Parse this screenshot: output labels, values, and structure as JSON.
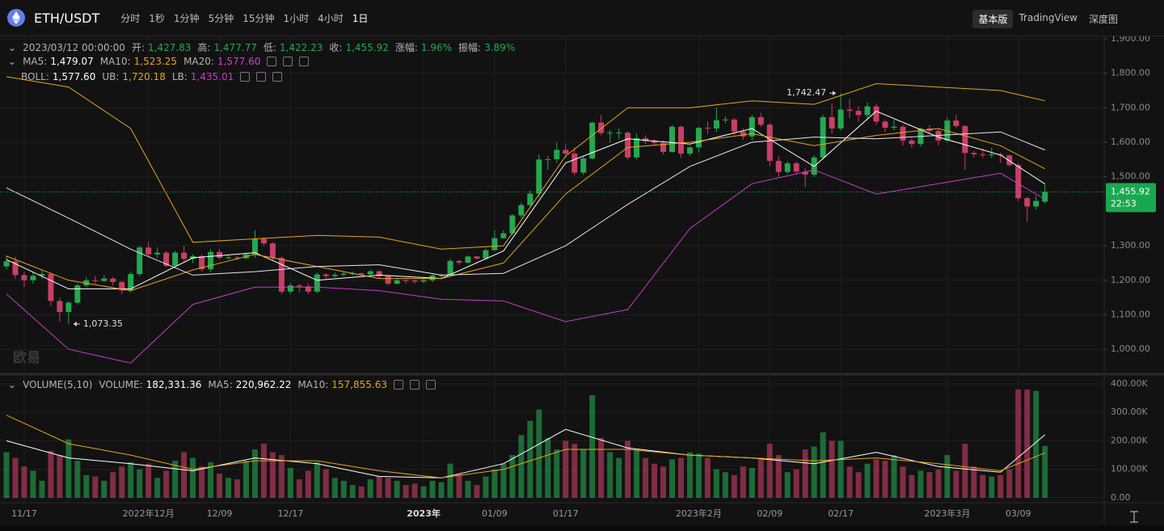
{
  "toolbar": {
    "symbol": "ETH/USDT",
    "intervals": [
      "分时",
      "1秒",
      "1分钟",
      "5分钟",
      "15分钟",
      "1小时",
      "4小时",
      "1日"
    ],
    "views": [
      "基本版",
      "TradingView",
      "深度图"
    ]
  },
  "watermark": "欧易",
  "chart_data": {
    "type": "candlestick",
    "title": "ETH/USDT",
    "header": {
      "date": "2023/03/12 00:00:00",
      "fields": [
        {
          "name": "开:",
          "label": "1,427.83"
        },
        {
          "name": "高:",
          "label": "1,477.77"
        },
        {
          "name": "低:",
          "label": "1,422.23"
        },
        {
          "name": "收:",
          "label": "1,455.92"
        },
        {
          "name": "涨幅:",
          "label": "1.96%"
        },
        {
          "name": "振幅:",
          "label": "3.89%"
        }
      ]
    },
    "color_up": "#25a750",
    "color_down": "#c93f66",
    "x": [
      "11/15",
      "11/16",
      "11/17",
      "11/18",
      "11/19",
      "11/20",
      "11/21",
      "11/22",
      "11/23",
      "11/24",
      "11/25",
      "11/26",
      "11/27",
      "11/28",
      "11/29",
      "11/30",
      "12/01",
      "12/02",
      "12/03",
      "12/04",
      "12/05",
      "12/06",
      "12/07",
      "12/08",
      "12/09",
      "12/10",
      "12/11",
      "12/12",
      "12/13",
      "12/14",
      "12/15",
      "12/16",
      "12/17",
      "12/18",
      "12/19",
      "12/20",
      "12/21",
      "12/22",
      "12/23",
      "12/24",
      "12/25",
      "12/26",
      "12/27",
      "12/28",
      "12/29",
      "12/30",
      "12/31",
      "01/01",
      "01/02",
      "01/03",
      "01/04",
      "01/05",
      "01/06",
      "01/07",
      "01/08",
      "01/09",
      "01/10",
      "01/11",
      "01/12",
      "01/13",
      "01/14",
      "01/15",
      "01/16",
      "01/17",
      "01/18",
      "01/19",
      "01/20",
      "01/21",
      "01/22",
      "01/23",
      "01/24",
      "01/25",
      "01/26",
      "01/27",
      "01/28",
      "01/29",
      "01/30",
      "01/31",
      "02/01",
      "02/02",
      "02/03",
      "02/04",
      "02/05",
      "02/06",
      "02/07",
      "02/08",
      "02/09",
      "02/10",
      "02/11",
      "02/12",
      "02/13",
      "02/14",
      "02/15",
      "02/16",
      "02/17",
      "02/18",
      "02/19",
      "02/20",
      "02/21",
      "02/22",
      "02/23",
      "02/24",
      "02/25",
      "02/26",
      "02/27",
      "02/28",
      "03/01",
      "03/02",
      "03/03",
      "03/04",
      "03/05",
      "03/06",
      "03/07",
      "03/08",
      "03/09",
      "03/10",
      "03/11",
      "03/12"
    ],
    "open": [
      1240,
      1255,
      1215,
      1200,
      1213,
      1218,
      1140,
      1108,
      1135,
      1185,
      1200,
      1198,
      1205,
      1195,
      1170,
      1218,
      1295,
      1275,
      1280,
      1242,
      1280,
      1262,
      1270,
      1232,
      1282,
      1265,
      1266,
      1264,
      1275,
      1320,
      1307,
      1265,
      1167,
      1185,
      1182,
      1167,
      1217,
      1212,
      1216,
      1219,
      1220,
      1217,
      1226,
      1212,
      1190,
      1200,
      1199,
      1196,
      1200,
      1214,
      1214,
      1256,
      1251,
      1269,
      1263,
      1287,
      1322,
      1336,
      1388,
      1418,
      1451,
      1550,
      1551,
      1578,
      1567,
      1512,
      1553,
      1657,
      1627,
      1628,
      1628,
      1556,
      1612,
      1603,
      1598,
      1572,
      1645,
      1567,
      1585,
      1642,
      1640,
      1664,
      1666,
      1631,
      1617,
      1673,
      1651,
      1546,
      1514,
      1539,
      1515,
      1506,
      1556,
      1673,
      1640,
      1695,
      1691,
      1679,
      1704,
      1660,
      1642,
      1645,
      1605,
      1595,
      1640,
      1633,
      1605,
      1663,
      1647,
      1569,
      1565,
      1564,
      1565,
      1562,
      1534,
      1438,
      1414,
      1427.83
    ],
    "high": [
      1272,
      1268,
      1225,
      1225,
      1230,
      1222,
      1150,
      1140,
      1190,
      1210,
      1212,
      1215,
      1210,
      1198,
      1225,
      1300,
      1310,
      1295,
      1285,
      1285,
      1300,
      1275,
      1275,
      1290,
      1290,
      1272,
      1270,
      1280,
      1345,
      1325,
      1310,
      1270,
      1192,
      1190,
      1190,
      1222,
      1220,
      1222,
      1225,
      1225,
      1222,
      1230,
      1228,
      1215,
      1205,
      1205,
      1202,
      1205,
      1218,
      1220,
      1262,
      1260,
      1272,
      1270,
      1292,
      1345,
      1345,
      1392,
      1425,
      1460,
      1565,
      1560,
      1600,
      1595,
      1585,
      1560,
      1660,
      1680,
      1635,
      1640,
      1632,
      1625,
      1620,
      1610,
      1605,
      1650,
      1648,
      1590,
      1645,
      1660,
      1700,
      1675,
      1670,
      1640,
      1680,
      1685,
      1655,
      1560,
      1545,
      1545,
      1525,
      1562,
      1680,
      1712,
      1742.47,
      1725,
      1705,
      1715,
      1712,
      1665,
      1665,
      1650,
      1612,
      1642,
      1650,
      1640,
      1672,
      1680,
      1650,
      1575,
      1582,
      1585,
      1570,
      1565,
      1540,
      1442,
      1445,
      1477.77
    ],
    "low": [
      1232,
      1205,
      1180,
      1190,
      1205,
      1125,
      1080,
      1073.35,
      1130,
      1180,
      1190,
      1195,
      1185,
      1160,
      1165,
      1212,
      1268,
      1265,
      1238,
      1238,
      1255,
      1250,
      1225,
      1225,
      1260,
      1262,
      1258,
      1260,
      1265,
      1300,
      1258,
      1160,
      1160,
      1165,
      1160,
      1162,
      1205,
      1208,
      1212,
      1215,
      1212,
      1215,
      1205,
      1185,
      1188,
      1190,
      1190,
      1192,
      1195,
      1205,
      1210,
      1245,
      1248,
      1260,
      1260,
      1285,
      1320,
      1330,
      1380,
      1410,
      1440,
      1520,
      1540,
      1555,
      1505,
      1505,
      1550,
      1620,
      1600,
      1610,
      1550,
      1550,
      1595,
      1590,
      1565,
      1570,
      1555,
      1560,
      1570,
      1625,
      1630,
      1655,
      1622,
      1607,
      1605,
      1645,
      1530,
      1500,
      1508,
      1510,
      1470,
      1500,
      1550,
      1625,
      1635,
      1670,
      1660,
      1665,
      1650,
      1630,
      1635,
      1590,
      1585,
      1588,
      1625,
      1590,
      1600,
      1640,
      1520,
      1555,
      1555,
      1555,
      1540,
      1530,
      1430,
      1370,
      1405,
      1422.23
    ],
    "close": [
      1255,
      1215,
      1200,
      1213,
      1218,
      1140,
      1108,
      1135,
      1185,
      1200,
      1198,
      1205,
      1195,
      1170,
      1218,
      1295,
      1275,
      1280,
      1242,
      1280,
      1262,
      1270,
      1232,
      1282,
      1265,
      1266,
      1264,
      1275,
      1320,
      1307,
      1265,
      1167,
      1185,
      1182,
      1167,
      1217,
      1212,
      1216,
      1219,
      1220,
      1217,
      1226,
      1212,
      1190,
      1200,
      1199,
      1196,
      1200,
      1214,
      1214,
      1256,
      1251,
      1269,
      1263,
      1287,
      1322,
      1336,
      1388,
      1418,
      1451,
      1550,
      1551,
      1578,
      1567,
      1512,
      1553,
      1657,
      1627,
      1628,
      1628,
      1556,
      1612,
      1603,
      1598,
      1572,
      1645,
      1567,
      1585,
      1642,
      1640,
      1664,
      1666,
      1631,
      1617,
      1673,
      1651,
      1546,
      1514,
      1539,
      1515,
      1506,
      1556,
      1673,
      1640,
      1695,
      1691,
      1679,
      1704,
      1660,
      1642,
      1645,
      1605,
      1595,
      1640,
      1633,
      1605,
      1663,
      1647,
      1569,
      1565,
      1564,
      1565,
      1562,
      1534,
      1438,
      1414,
      1430,
      1455.92
    ],
    "ylim": [
      930,
      1907
    ],
    "yticks": [
      {
        "value": 1900,
        "label": "1,900.00"
      },
      {
        "value": 1800,
        "label": "1,800.00"
      },
      {
        "value": 1700,
        "label": "1,700.00"
      },
      {
        "value": 1600,
        "label": "1,600.00"
      },
      {
        "value": 1500,
        "label": "1,500.00"
      },
      {
        "value": 1300,
        "label": "1,300.00"
      },
      {
        "value": 1200,
        "label": "1,200.00"
      },
      {
        "value": 1100,
        "label": "1,100.00"
      },
      {
        "value": 1000,
        "label": "1,000.00"
      }
    ],
    "xticks": [
      "11/17",
      {
        "value": "12/01",
        "label": "2022年12月"
      },
      "12/09",
      "12/17",
      {
        "value": "01/01",
        "label": "2023年"
      },
      "01/09",
      "01/17",
      {
        "value": "02/01",
        "label": "2023年2月"
      },
      "02/09",
      "02/17",
      {
        "value": "03/01",
        "label": "2023年3月"
      },
      "03/09"
    ],
    "grid": true,
    "line_x": [
      "11/15",
      "11/22",
      "11/29",
      "12/06",
      "12/13",
      "12/20",
      "12/27",
      "01/03",
      "01/10",
      "01/17",
      "01/24",
      "01/31",
      "02/07",
      "02/14",
      "02/21",
      "02/28",
      "03/07",
      "03/12"
    ],
    "lines": [
      {
        "name": "MA5:",
        "value_label": "1,479.07",
        "color": "#ffffff",
        "label_color": "#ffffff",
        "values": [
          1260,
          1175,
          1175,
          1265,
          1280,
          1200,
          1215,
          1205,
          1285,
          1540,
          1610,
          1595,
          1640,
          1530,
          1690,
          1615,
          1563,
          1479.07
        ]
      },
      {
        "name": "MA10:",
        "value_label": "1,523.25",
        "color": "#e8a317",
        "label_color": "#e8a317",
        "values": [
          1270,
          1200,
          1170,
          1230,
          1275,
          1240,
          1205,
          1205,
          1250,
          1450,
          1585,
          1600,
          1625,
          1590,
          1620,
          1640,
          1590,
          1523.25
        ]
      },
      {
        "name": "MA20:",
        "value_label": "1,577.60",
        "color": "#e6e6e6",
        "label_color": "#d23fd6",
        "values": [
          1468,
          1380,
          1290,
          1215,
          1225,
          1240,
          1245,
          1215,
          1220,
          1300,
          1420,
          1530,
          1600,
          1615,
          1610,
          1620,
          1630,
          1577.6
        ]
      }
    ],
    "boll": {
      "name": "BOLL:",
      "label": "1,577.60",
      "bands": [
        {
          "name": "UB:",
          "value_label": "1,720.18",
          "color": "#e8a317",
          "values": [
            1790,
            1760,
            1640,
            1310,
            1320,
            1330,
            1325,
            1290,
            1300,
            1560,
            1700,
            1700,
            1720,
            1710,
            1770,
            1760,
            1750,
            1720.18
          ]
        },
        {
          "name": "LB:",
          "value_label": "1,435.01",
          "color": "#c93bcc",
          "values": [
            1160,
            1000,
            960,
            1130,
            1180,
            1180,
            1170,
            1145,
            1140,
            1080,
            1115,
            1350,
            1480,
            1520,
            1450,
            1480,
            1510,
            1435.01
          ]
        }
      ]
    },
    "annotations": [
      {
        "x": "02/17",
        "value": 1742.47,
        "label": "1,742.47",
        "side": "left"
      },
      {
        "x": "11/22",
        "value": 1073.35,
        "label": "1,073.35",
        "side": "right"
      }
    ],
    "last_price": {
      "label": "1,455.92",
      "countdown": "22:53",
      "color": "#1aa84f"
    },
    "volume": {
      "title": "VOLUME(5,10)",
      "name": "VOLUME:",
      "label": "182,331.36",
      "values": [
        160000,
        140000,
        110000,
        95000,
        60000,
        165000,
        150000,
        205000,
        130000,
        80000,
        75000,
        60000,
        90000,
        110000,
        125000,
        100000,
        120000,
        70000,
        95000,
        130000,
        160000,
        140000,
        110000,
        125000,
        85000,
        70000,
        65000,
        130000,
        170000,
        190000,
        160000,
        150000,
        105000,
        65000,
        95000,
        125000,
        100000,
        70000,
        60000,
        45000,
        40000,
        65000,
        75000,
        70000,
        60000,
        45000,
        50000,
        40000,
        60000,
        55000,
        120000,
        85000,
        60000,
        45000,
        75000,
        100000,
        120000,
        150000,
        220000,
        270000,
        310000,
        210000,
        170000,
        200000,
        190000,
        170000,
        360000,
        210000,
        160000,
        140000,
        200000,
        170000,
        140000,
        120000,
        110000,
        135000,
        140000,
        160000,
        155000,
        140000,
        100000,
        90000,
        80000,
        110000,
        105000,
        140000,
        190000,
        150000,
        90000,
        100000,
        170000,
        180000,
        230000,
        200000,
        200000,
        110000,
        90000,
        120000,
        135000,
        130000,
        150000,
        110000,
        80000,
        95000,
        90000,
        100000,
        150000,
        95000,
        190000,
        110000,
        80000,
        75000,
        80000,
        100000,
        380000,
        380000,
        375000,
        182331.36
      ],
      "ylim": [
        -17000,
        428000
      ],
      "yticks": [
        {
          "value": 400000,
          "label": "400.00K"
        },
        {
          "value": 300000,
          "label": "300.00K"
        },
        {
          "value": 200000,
          "label": "200.00K"
        },
        {
          "value": 100000,
          "label": "100.00K"
        },
        {
          "value": 0,
          "label": "0.00"
        }
      ],
      "lines": [
        {
          "name": "MA5:",
          "value_label": "220,962.22",
          "color": "#ffffff",
          "values": [
            200000,
            140000,
            120000,
            95000,
            140000,
            120000,
            75000,
            70000,
            120000,
            240000,
            175000,
            150000,
            140000,
            120000,
            160000,
            110000,
            90000,
            220962.22
          ]
        },
        {
          "name": "MA10:",
          "value_label": "157,855.63",
          "color": "#e8a317",
          "values": [
            290000,
            190000,
            150000,
            100000,
            130000,
            130000,
            95000,
            70000,
            100000,
            170000,
            170000,
            150000,
            140000,
            130000,
            140000,
            120000,
            95000,
            157855.63
          ]
        }
      ]
    }
  }
}
